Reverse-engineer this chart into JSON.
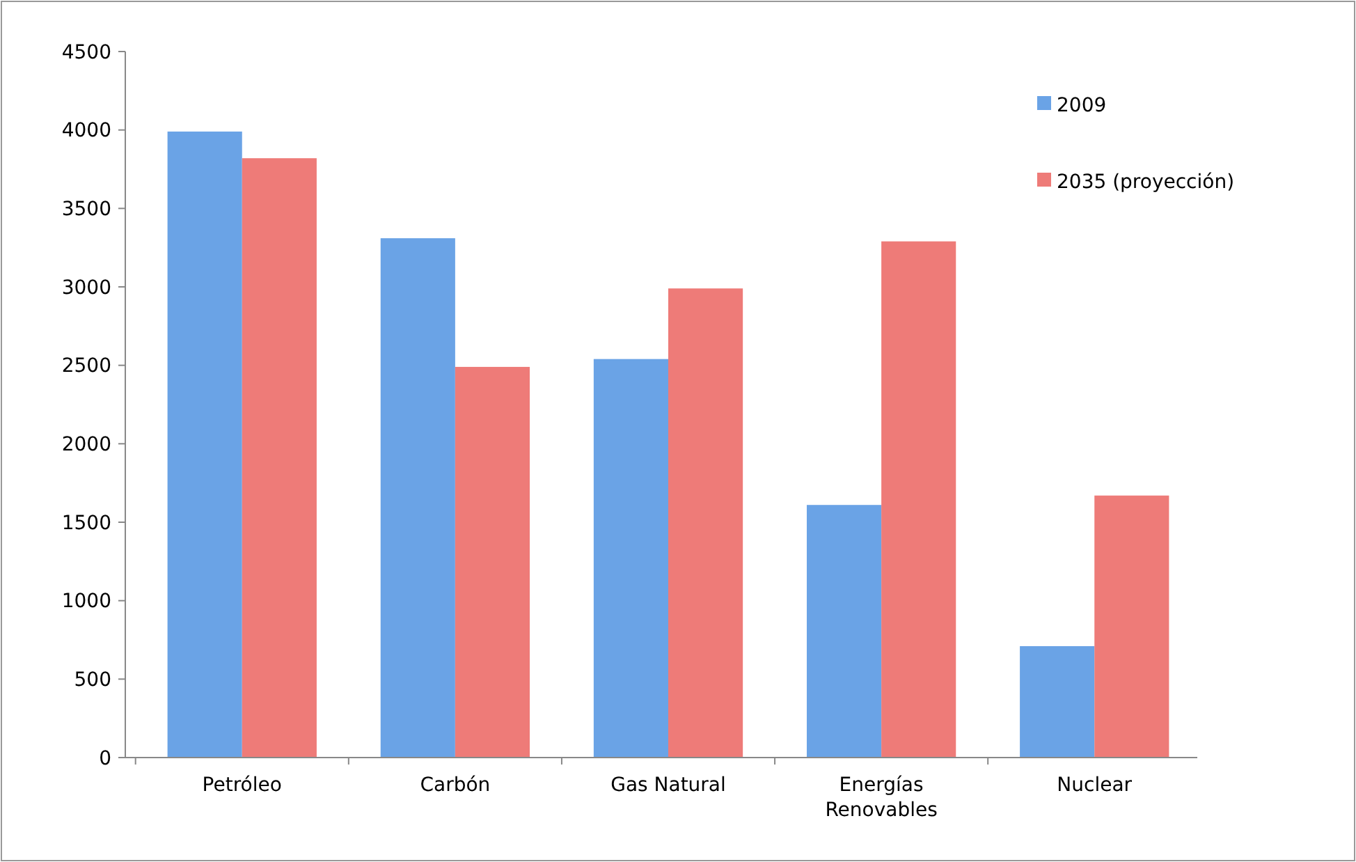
{
  "chart_data": {
    "type": "bar",
    "categories": [
      "Petróleo",
      "Carbón",
      "Gas Natural",
      "Energías Renovables",
      "Nuclear"
    ],
    "series": [
      {
        "name": "2009",
        "color": "#6aa3e6",
        "values": [
          3990,
          3310,
          2540,
          1610,
          710
        ]
      },
      {
        "name": "2035 (proyección)",
        "color": "#ee7b78",
        "values": [
          3820,
          2490,
          2990,
          3290,
          1670
        ]
      }
    ],
    "ylim": [
      0,
      4500
    ],
    "yticks": [
      0,
      500,
      1000,
      1500,
      2000,
      2500,
      3000,
      3500,
      4000,
      4500
    ],
    "grid": false,
    "legend": "top right"
  }
}
